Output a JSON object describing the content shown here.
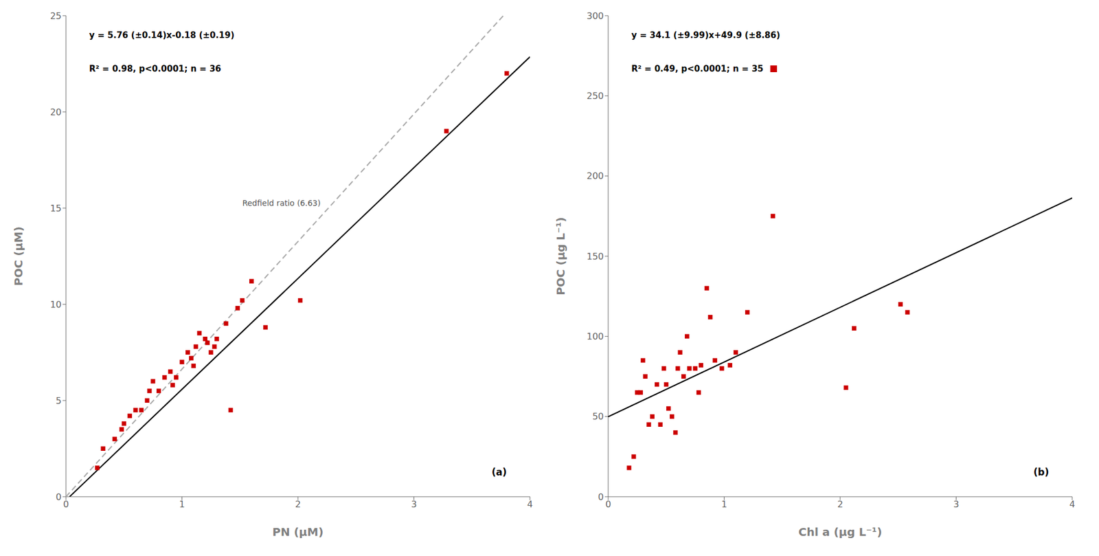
{
  "chart_data": [
    {
      "type": "scatter",
      "xlabel": "PN (μM)",
      "ylabel": "POC (μM)",
      "grid": false,
      "xlim": [
        0,
        4
      ],
      "ylim": [
        0,
        25
      ],
      "xticks": [
        0,
        1,
        2,
        3,
        4
      ],
      "yticks": [
        0,
        5,
        10,
        15,
        20,
        25
      ],
      "series": [
        {
          "type": "scatter",
          "marker": "square",
          "color": "#cc0000",
          "x": [
            0.27,
            0.32,
            0.42,
            0.48,
            0.5,
            0.55,
            0.6,
            0.65,
            0.7,
            0.72,
            0.75,
            0.8,
            0.85,
            0.9,
            0.92,
            0.95,
            1.0,
            1.05,
            1.08,
            1.1,
            1.12,
            1.15,
            1.2,
            1.22,
            1.25,
            1.28,
            1.3,
            1.38,
            1.42,
            1.48,
            1.52,
            1.6,
            1.72,
            2.02,
            3.28,
            3.8
          ],
          "values": [
            1.5,
            2.5,
            3.0,
            3.5,
            3.8,
            4.2,
            4.5,
            4.5,
            5.0,
            5.5,
            6.0,
            5.5,
            6.2,
            6.5,
            5.8,
            6.2,
            7.0,
            7.5,
            7.2,
            6.8,
            7.8,
            8.5,
            8.2,
            8.0,
            7.5,
            7.8,
            8.2,
            9.0,
            4.5,
            9.8,
            10.2,
            11.2,
            8.8,
            10.2,
            19.0,
            22.0
          ]
        },
        {
          "type": "line",
          "line_style": "solid",
          "color": "#000000",
          "x": [
            0.03125,
            4
          ],
          "values": [
            0,
            22.86
          ]
        },
        {
          "type": "line",
          "line_style": "dashed",
          "color": "#aaaaaa",
          "x": [
            0,
            3.77
          ],
          "values": [
            0,
            24.9951
          ]
        }
      ],
      "annotations": [
        "y = 5.76 (±0.14)x-0.18 (±0.19)",
        "R² = 0.98, p<0.0001; n = 36",
        "Redfield ratio (6.63)",
        "(a)"
      ]
    },
    {
      "type": "scatter",
      "xlabel": "Chl a (μg L⁻¹)",
      "ylabel": "POC (μg L⁻¹)",
      "grid": false,
      "xlim": [
        0,
        4
      ],
      "ylim": [
        0,
        300
      ],
      "xticks": [
        0,
        1,
        2,
        3,
        4
      ],
      "yticks": [
        0,
        50,
        100,
        150,
        200,
        250,
        300
      ],
      "series": [
        {
          "type": "scatter",
          "marker": "square",
          "color": "#cc0000",
          "x": [
            0.18,
            0.22,
            0.25,
            0.28,
            0.3,
            0.32,
            0.35,
            0.38,
            0.42,
            0.45,
            0.48,
            0.5,
            0.52,
            0.55,
            0.58,
            0.6,
            0.62,
            0.65,
            0.68,
            0.7,
            0.75,
            0.78,
            0.8,
            0.85,
            0.88,
            0.92,
            0.98,
            1.05,
            1.1,
            1.2,
            1.42,
            2.05,
            2.12,
            2.52,
            2.58
          ],
          "values": [
            18,
            25,
            65,
            65,
            85,
            75,
            45,
            50,
            70,
            45,
            80,
            70,
            55,
            50,
            40,
            80,
            90,
            75,
            100,
            80,
            80,
            65,
            82,
            130,
            112,
            85,
            80,
            82,
            90,
            115,
            175,
            68,
            105,
            120,
            115
          ]
        },
        {
          "type": "line",
          "line_style": "solid",
          "color": "#000000",
          "x": [
            0,
            4
          ],
          "values": [
            49.9,
            186.3
          ]
        }
      ],
      "annotations": [
        "y = 34.1 (±9.99)x+49.9 (±8.86)",
        "R² = 0.49, p<0.0001; n = 35",
        "(b)"
      ]
    }
  ]
}
